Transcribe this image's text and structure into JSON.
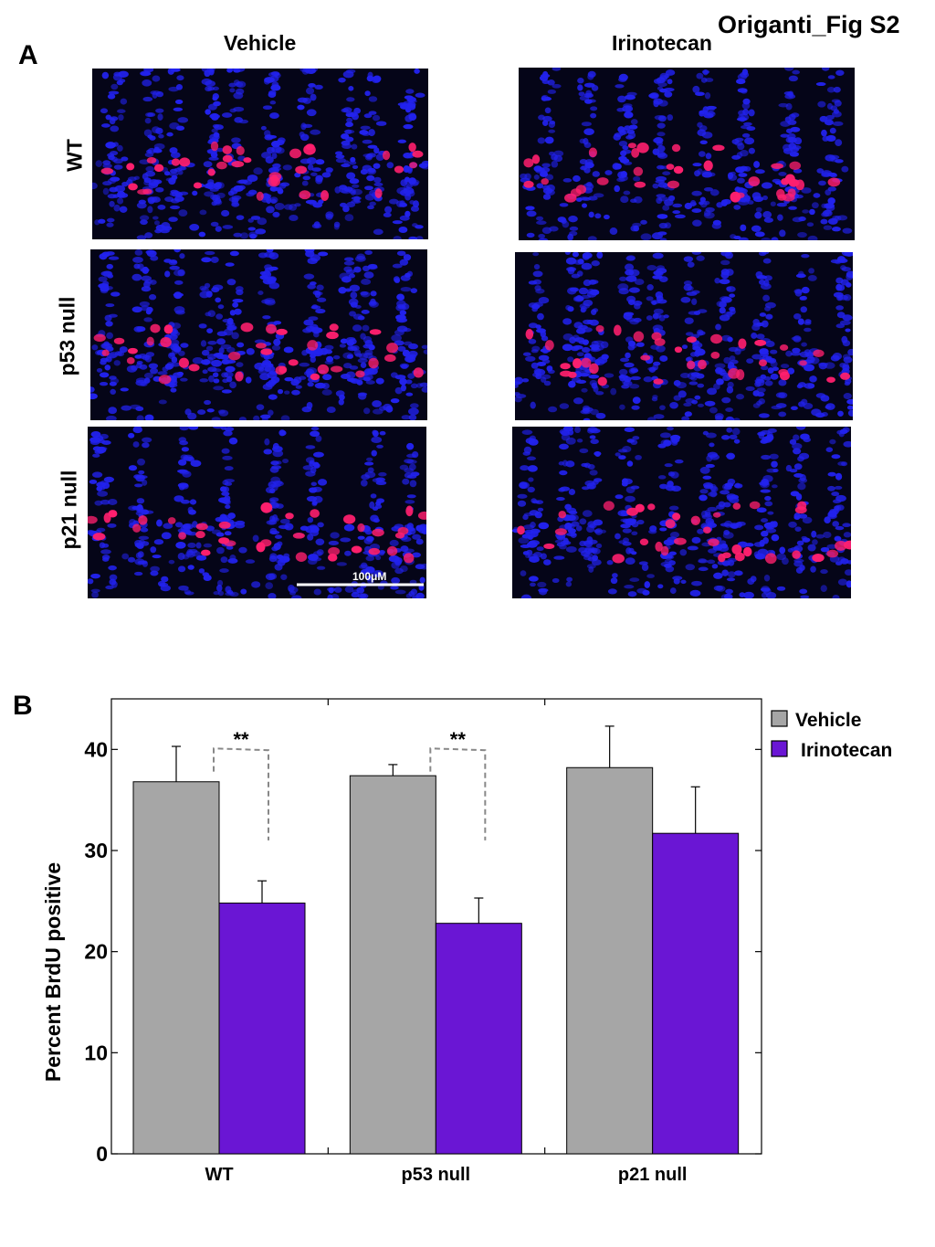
{
  "figure_label": "Origanti_Fig S2",
  "panel_a": {
    "letter": "A",
    "columns": [
      "Vehicle",
      "Irinotecan"
    ],
    "rows": [
      "WT",
      "p53 null",
      "p21 null"
    ],
    "scale_bar_label": "100μM",
    "colors": {
      "nuclei": "#2222ee",
      "brdu": "#ff1f6e",
      "background": "#050518"
    }
  },
  "panel_b": {
    "letter": "B"
  },
  "chart_data": {
    "type": "bar",
    "categories": [
      "WT",
      "p53 null",
      "p21 null"
    ],
    "series": [
      {
        "name": "Vehicle",
        "values": [
          36.8,
          37.4,
          38.2
        ],
        "errors": [
          3.5,
          1.1,
          4.1
        ],
        "color": "#a6a6a6"
      },
      {
        "name": "Irinotecan",
        "values": [
          24.8,
          22.8,
          31.7
        ],
        "errors": [
          2.2,
          2.5,
          4.6
        ],
        "color": "#6a16d4"
      }
    ],
    "ylabel": "Percent BrdU positive",
    "xlabel": "",
    "ylim": [
      0,
      45
    ],
    "yticks": [
      0,
      10,
      20,
      30,
      40
    ],
    "legend_position": "right",
    "significance": [
      {
        "category": "WT",
        "label": "**"
      },
      {
        "category": "p53 null",
        "label": "**"
      }
    ]
  }
}
